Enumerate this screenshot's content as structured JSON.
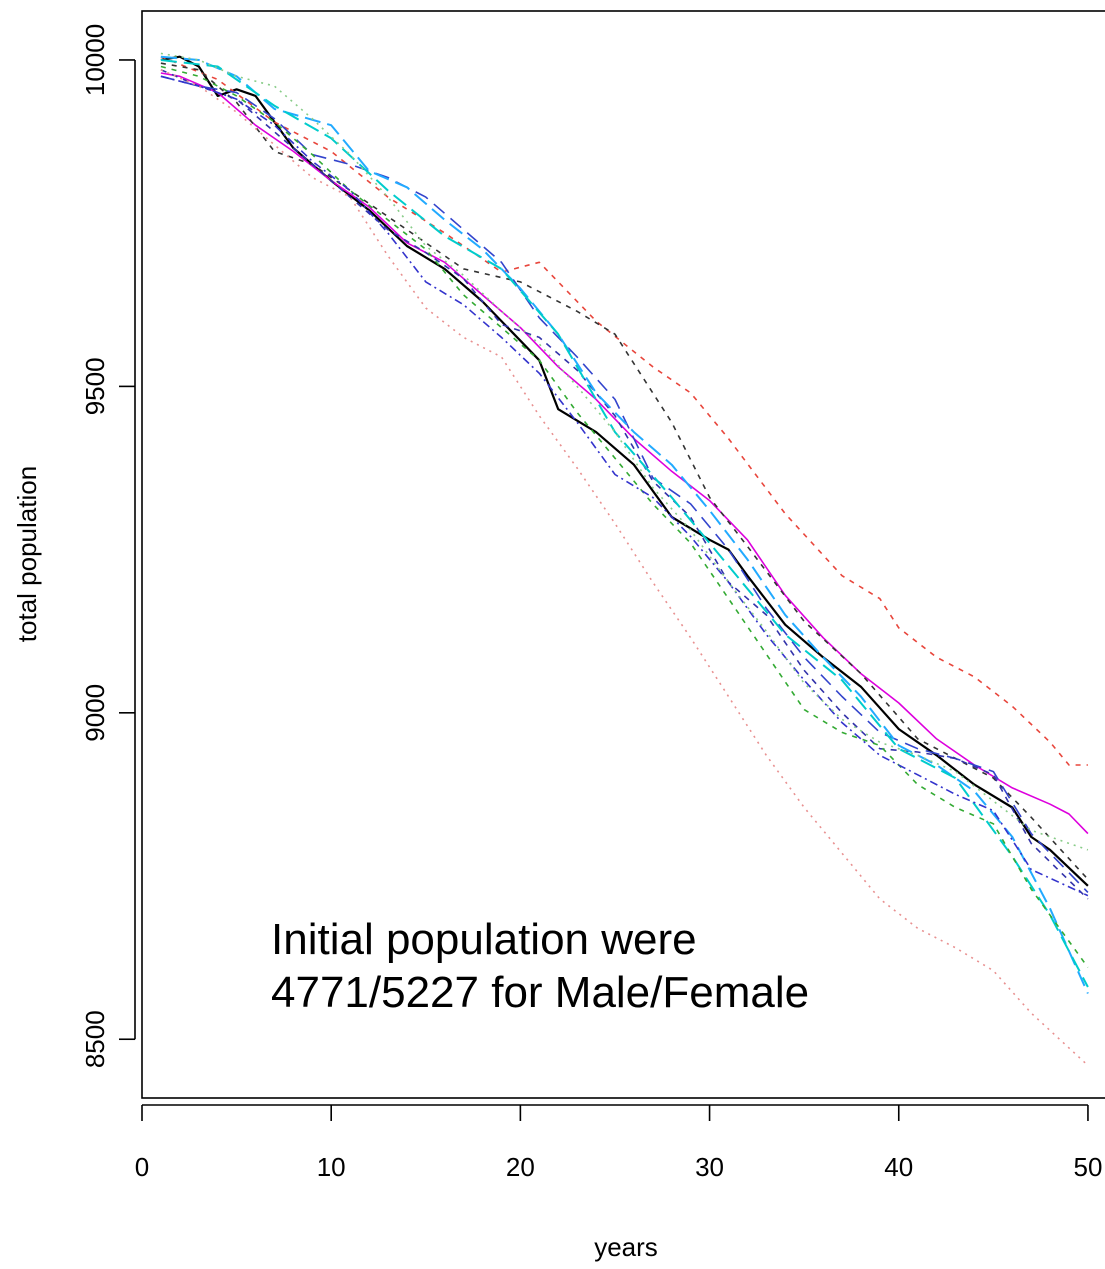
{
  "chart_data": {
    "type": "line",
    "xlabel": "years",
    "ylabel": "total population",
    "xlim": [
      0,
      51.8
    ],
    "ylim": [
      8410,
      10075
    ],
    "xticks": [
      "0",
      "10",
      "20",
      "30",
      "40",
      "50"
    ],
    "yticks": [
      "8500",
      "9000",
      "9500",
      "10000"
    ],
    "annotation": [
      "Initial population were",
      "4771/5227 for Male/Female"
    ],
    "legend": "none",
    "grid": false,
    "series": [
      {
        "color": "#000000",
        "dash": "solid",
        "width": 2.2,
        "x": [
          1,
          2,
          3,
          4,
          5,
          6,
          8,
          10,
          12,
          14,
          16,
          18,
          20,
          21,
          22,
          24,
          26,
          28,
          30,
          31,
          32,
          34,
          36,
          38,
          40,
          42,
          44,
          46,
          47,
          48,
          50
        ],
        "y": [
          10000,
          10005,
          9990,
          9945,
          9955,
          9945,
          9865,
          9815,
          9770,
          9715,
          9680,
          9630,
          9570,
          9540,
          9465,
          9430,
          9380,
          9300,
          9265,
          9250,
          9210,
          9135,
          9085,
          9040,
          8975,
          8935,
          8890,
          8855,
          8810,
          8790,
          8735
        ]
      },
      {
        "color": "#dd00dd",
        "dash": "solid",
        "width": 1.6,
        "x": [
          1,
          2,
          4,
          6,
          8,
          10,
          12,
          14,
          16,
          18,
          20,
          22,
          24,
          26,
          28,
          30,
          32,
          34,
          36,
          38,
          40,
          42,
          44,
          46,
          48,
          49,
          50
        ],
        "y": [
          9980,
          9975,
          9950,
          9900,
          9860,
          9815,
          9775,
          9720,
          9690,
          9640,
          9590,
          9530,
          9480,
          9420,
          9370,
          9325,
          9265,
          9180,
          9115,
          9060,
          9015,
          8960,
          8920,
          8885,
          8860,
          8845,
          8815
        ]
      },
      {
        "color": "#e8463c",
        "dash": "5,6",
        "width": 1.6,
        "x": [
          1,
          4,
          7,
          10,
          13,
          16,
          19,
          21,
          24,
          27,
          29,
          31,
          34,
          37,
          39,
          40,
          42,
          44,
          46,
          48,
          49,
          50
        ],
        "y": [
          10005,
          9970,
          9905,
          9860,
          9790,
          9735,
          9675,
          9690,
          9600,
          9530,
          9490,
          9420,
          9305,
          9210,
          9175,
          9130,
          9085,
          9055,
          9010,
          8955,
          8920,
          8920
        ]
      },
      {
        "color": "#333333",
        "dash": "5,6",
        "width": 1.6,
        "x": [
          1,
          3,
          5,
          7,
          9,
          11,
          14,
          17,
          20,
          23,
          25,
          28,
          30,
          32,
          35,
          38,
          41,
          43,
          45,
          47,
          50
        ],
        "y": [
          9995,
          9985,
          9935,
          9860,
          9840,
          9800,
          9740,
          9680,
          9660,
          9615,
          9580,
          9445,
          9330,
          9255,
          9140,
          9060,
          8960,
          8930,
          8900,
          8840,
          8745
        ]
      },
      {
        "color": "#3344cc",
        "dash": "14,8",
        "width": 1.6,
        "x": [
          1,
          3,
          5,
          7,
          9,
          11,
          13,
          15,
          17,
          19,
          21,
          23,
          25,
          27,
          29,
          31,
          33,
          35,
          37,
          39,
          41,
          43,
          45,
          47,
          50
        ],
        "y": [
          9975,
          9960,
          9950,
          9910,
          9855,
          9840,
          9820,
          9790,
          9740,
          9690,
          9605,
          9545,
          9480,
          9360,
          9320,
          9250,
          9160,
          9085,
          9025,
          8970,
          8945,
          8930,
          8910,
          8815,
          8725
        ]
      },
      {
        "color": "#3333aa",
        "dash": "6,6",
        "width": 1.6,
        "x": [
          1,
          3,
          5,
          7,
          9,
          11,
          13,
          15,
          17,
          19,
          21,
          23,
          25,
          27,
          29,
          31,
          33,
          35,
          37,
          39,
          41,
          43,
          45,
          47,
          50
        ],
        "y": [
          9985,
          9960,
          9940,
          9890,
          9840,
          9790,
          9740,
          9705,
          9665,
          9595,
          9575,
          9525,
          9455,
          9355,
          9300,
          9200,
          9150,
          9065,
          9000,
          8945,
          8940,
          8930,
          8905,
          8800,
          8715
        ]
      },
      {
        "color": "#22aaff",
        "dash": "16,7",
        "width": 2.0,
        "x": [
          1,
          3,
          5,
          7,
          10,
          12,
          14,
          16,
          18,
          20,
          22,
          24,
          26,
          28,
          30,
          32,
          34,
          36,
          38,
          40,
          42,
          44,
          46,
          48,
          50
        ],
        "y": [
          10005,
          10000,
          9975,
          9925,
          9900,
          9830,
          9805,
          9755,
          9710,
          9650,
          9580,
          9490,
          9430,
          9380,
          9310,
          9235,
          9150,
          9085,
          9025,
          8950,
          8920,
          8880,
          8810,
          8700,
          8570
        ]
      },
      {
        "color": "#00cccc",
        "dash": "16,7",
        "width": 2.0,
        "x": [
          1,
          4,
          7,
          10,
          13,
          16,
          19,
          22,
          25,
          28,
          31,
          34,
          37,
          40,
          43,
          46,
          48,
          50
        ],
        "y": [
          10000,
          9990,
          9930,
          9880,
          9800,
          9730,
          9680,
          9580,
          9430,
          9330,
          9225,
          9120,
          9050,
          8945,
          8900,
          8780,
          8690,
          8580
        ]
      },
      {
        "color": "#33aa33",
        "dash": "5,6",
        "width": 1.6,
        "x": [
          1,
          3,
          5,
          7,
          9,
          11,
          13,
          15,
          17,
          19,
          21,
          23,
          25,
          27,
          29,
          31,
          33,
          35,
          37,
          39,
          41,
          43,
          45,
          47,
          50
        ],
        "y": [
          9990,
          9975,
          9945,
          9905,
          9855,
          9800,
          9755,
          9710,
          9640,
          9590,
          9540,
          9460,
          9390,
          9320,
          9260,
          9175,
          9090,
          9005,
          8970,
          8950,
          8890,
          8855,
          8830,
          8730,
          8610
        ]
      },
      {
        "color": "#3333cc",
        "dash": "8,4,2,4",
        "width": 1.6,
        "x": [
          1,
          3,
          5,
          7,
          9,
          11,
          13,
          15,
          17,
          19,
          21,
          23,
          25,
          27,
          29,
          31,
          33,
          35,
          37,
          39,
          41,
          43,
          45,
          47,
          50
        ],
        "y": [
          9975,
          9960,
          9940,
          9900,
          9845,
          9800,
          9735,
          9660,
          9625,
          9575,
          9520,
          9445,
          9365,
          9330,
          9270,
          9200,
          9120,
          9050,
          8985,
          8935,
          8905,
          8875,
          8850,
          8760,
          8720
        ]
      },
      {
        "color": "#88cc88",
        "dash": "2,5",
        "width": 1.6,
        "x": [
          1,
          3,
          5,
          7,
          9,
          11,
          13,
          15,
          17,
          19,
          21,
          23,
          25,
          27,
          29,
          31,
          33,
          35,
          37,
          39,
          41,
          43,
          45,
          47,
          50
        ],
        "y": [
          10010,
          10000,
          9975,
          9960,
          9910,
          9855,
          9790,
          9715,
          9670,
          9615,
          9565,
          9500,
          9430,
          9345,
          9280,
          9200,
          9125,
          9045,
          8990,
          8955,
          8935,
          8910,
          8865,
          8820,
          8790
        ]
      },
      {
        "color": "#e89090",
        "dash": "2,5",
        "width": 1.6,
        "x": [
          1,
          3,
          5,
          7,
          9,
          11,
          13,
          15,
          17,
          19,
          21,
          23,
          25,
          27,
          29,
          31,
          33,
          35,
          37,
          39,
          41,
          43,
          45,
          47,
          50
        ],
        "y": [
          9985,
          9960,
          9920,
          9870,
          9820,
          9790,
          9700,
          9620,
          9575,
          9545,
          9455,
          9375,
          9290,
          9200,
          9115,
          9025,
          8935,
          8855,
          8785,
          8715,
          8670,
          8640,
          8605,
          8540,
          8460
        ]
      }
    ]
  }
}
